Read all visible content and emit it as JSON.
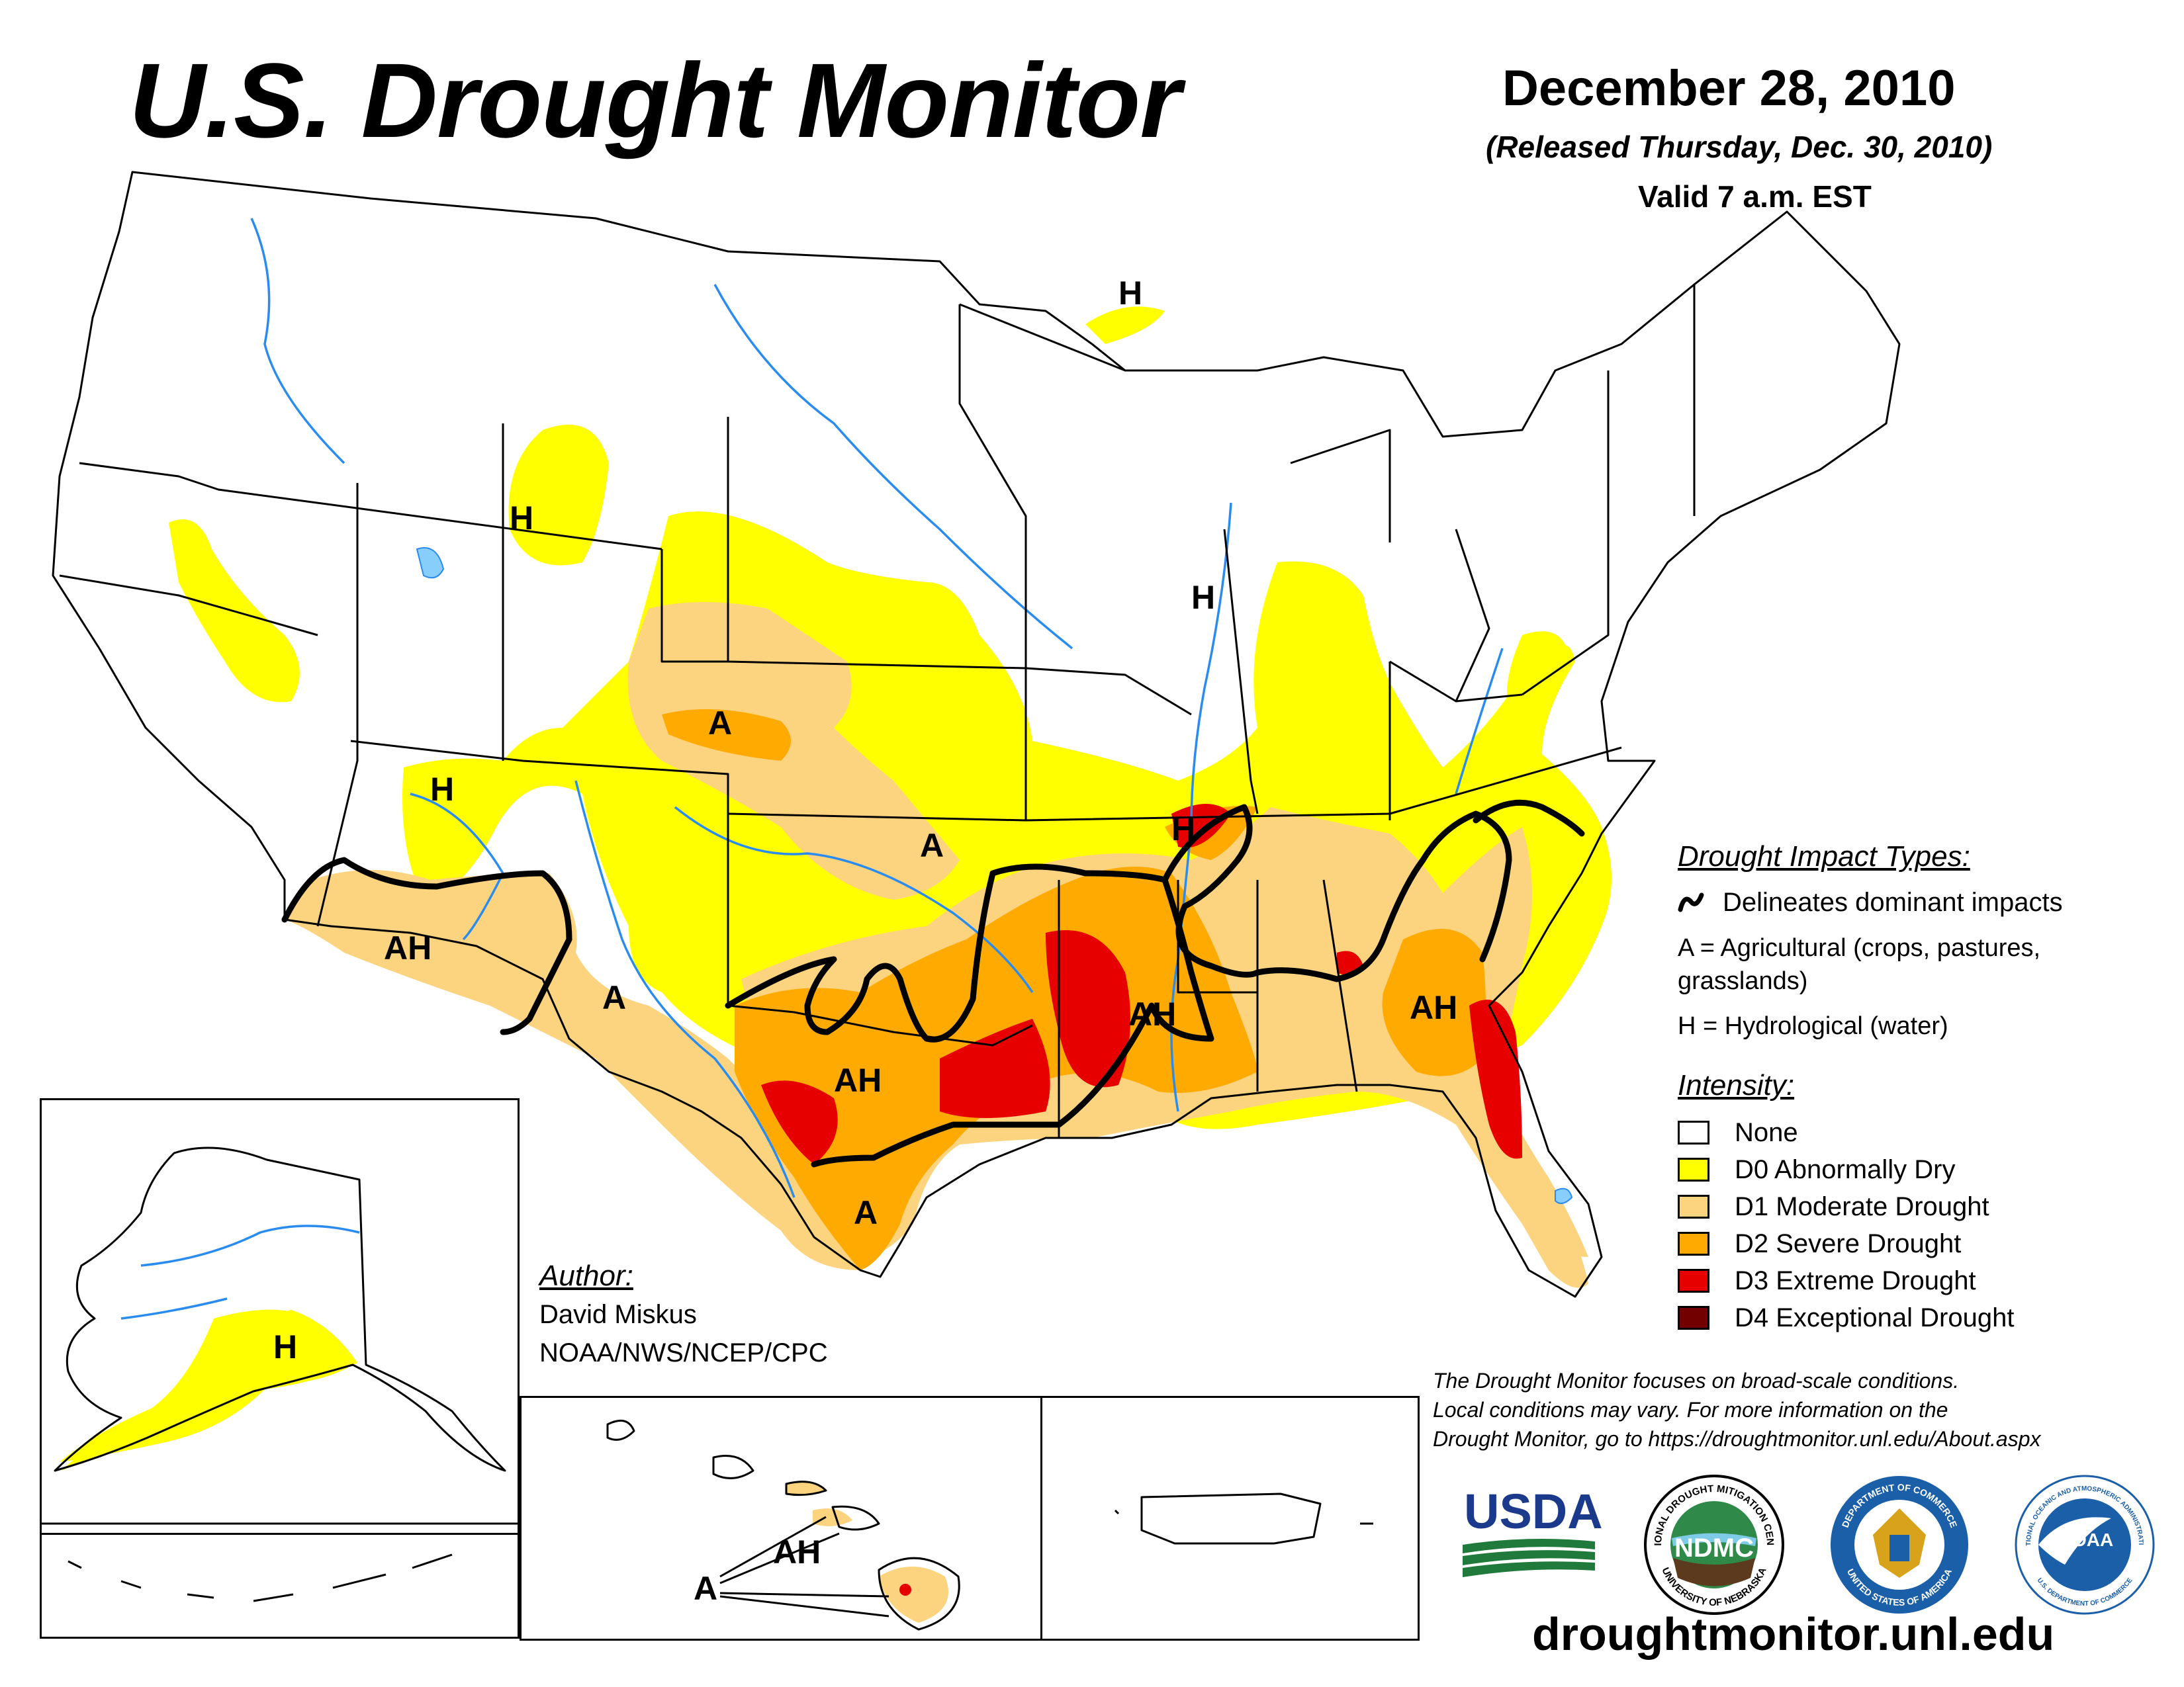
{
  "header": {
    "title": "U.S. Drought Monitor",
    "date": "December 28, 2010",
    "released": "(Released Thursday, Dec. 30, 2010)",
    "valid": "Valid 7 a.m. EST"
  },
  "map_labels": {
    "h_michigan": "H",
    "h_wyoming": "H",
    "h_illinois": "H",
    "h_arizona": "H",
    "h_arkansas": "H",
    "a_colorado": "A",
    "a_kansas": "A",
    "a_new_mexico": "A",
    "a_south_texas": "A",
    "ah_arizona": "AH",
    "ah_texas": "AH",
    "ah_louisiana": "AH",
    "ah_georgia": "AH",
    "h_alaska": "H",
    "ah_hawaii": "AH",
    "a_hawaii": "A"
  },
  "legend": {
    "impact_title": "Drought Impact Types:",
    "delineates": "Delineates dominant impacts",
    "agricultural_line1": "A = Agricultural (crops, pastures,",
    "agricultural_line2": "grasslands)",
    "hydrological": "H = Hydrological (water)",
    "intensity_title": "Intensity:",
    "categories": [
      {
        "label": "None",
        "color": "#ffffff"
      },
      {
        "label": "D0 Abnormally Dry",
        "color": "#ffff00"
      },
      {
        "label": "D1 Moderate Drought",
        "color": "#fcd37f"
      },
      {
        "label": "D2 Severe Drought",
        "color": "#ffaa00"
      },
      {
        "label": "D3 Extreme Drought",
        "color": "#e60000"
      },
      {
        "label": "D4 Exceptional Drought",
        "color": "#730000"
      }
    ]
  },
  "author": {
    "heading": "Author:",
    "name": "David Miskus",
    "org": "NOAA/NWS/NCEP/CPC"
  },
  "disclaimer": {
    "line1": "The Drought Monitor focuses on broad-scale conditions.",
    "line2": "Local conditions may vary. For more information on the",
    "line3": "Drought Monitor, go to https://droughtmonitor.unl.edu/About.aspx"
  },
  "logos": {
    "usda": "USDA",
    "ndmc": "NDMC",
    "ndmc_ring": "NATIONAL DROUGHT MITIGATION CENTER",
    "ndmc_ring_bottom": "UNIVERSITY OF NEBRASKA",
    "commerce_ring": "DEPARTMENT OF COMMERCE",
    "commerce_ring_bottom": "UNITED STATES OF AMERICA",
    "noaa": "NOAA",
    "noaa_ring": "NATIONAL OCEANIC AND ATMOSPHERIC ADMINISTRATION",
    "noaa_ring_bottom": "U.S. DEPARTMENT OF COMMERCE"
  },
  "website": "droughtmonitor.unl.edu"
}
